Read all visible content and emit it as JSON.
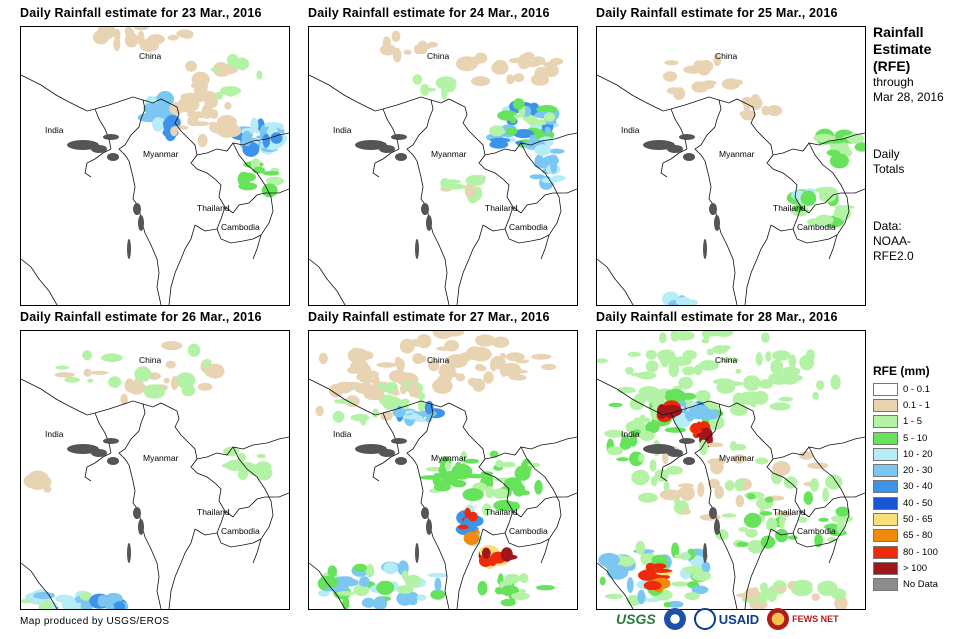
{
  "panels": [
    {
      "title": "Daily Rainfall estimate for 23 Mar., 2016"
    },
    {
      "title": "Daily Rainfall estimate for 24 Mar., 2016"
    },
    {
      "title": "Daily Rainfall estimate for 25 Mar., 2016"
    },
    {
      "title": "Daily Rainfall estimate for 26 Mar., 2016"
    },
    {
      "title": "Daily Rainfall estimate for 27 Mar., 2016"
    },
    {
      "title": "Daily Rainfall estimate for 28 Mar., 2016"
    }
  ],
  "map_labels": {
    "china": "China",
    "india": "India",
    "myanmar": "Myanmar",
    "thailand": "Thailand",
    "cambodia": "Cambodia"
  },
  "side": {
    "title_line1": "Rainfall",
    "title_line2": "Estimate",
    "title_line3": "(RFE)",
    "through": "through",
    "date": "Mar 28, 2016",
    "daily": "Daily",
    "totals": "Totals",
    "data_label": "Data:",
    "source_line1": "NOAA-",
    "source_line2": "RFE2.0"
  },
  "legend": {
    "title": "RFE (mm)",
    "items": [
      {
        "label": "0 - 0.1",
        "color": "#ffffff"
      },
      {
        "label": "0.1 - 1",
        "color": "#e8d3b3"
      },
      {
        "label": "1 - 5",
        "color": "#b4f2a6"
      },
      {
        "label": "5 - 10",
        "color": "#66e35a"
      },
      {
        "label": "10 - 20",
        "color": "#b6ecf5"
      },
      {
        "label": "20 - 30",
        "color": "#7cc6f2"
      },
      {
        "label": "30 - 40",
        "color": "#3d93ea"
      },
      {
        "label": "40 - 50",
        "color": "#1a55d6"
      },
      {
        "label": "50 - 65",
        "color": "#f7df7a"
      },
      {
        "label": "65 - 80",
        "color": "#f08a0c"
      },
      {
        "label": "80 - 100",
        "color": "#ee2a0c"
      },
      {
        "label": "> 100",
        "color": "#a0161a"
      },
      {
        "label": "No Data",
        "color": "#8c8c8c"
      }
    ]
  },
  "credit": "Map produced by USGS/EROS",
  "logos": {
    "usgs": "USGS",
    "usaid": "USAID",
    "fews": "FEWS NET"
  }
}
